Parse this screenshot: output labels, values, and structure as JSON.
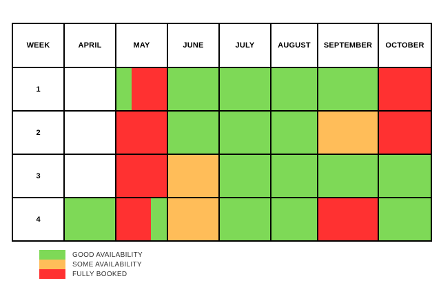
{
  "colors": {
    "good": "#7ED957",
    "some": "#FFBD59",
    "booked": "#FF3131",
    "none": "#FFFFFF"
  },
  "chart_data": {
    "type": "table",
    "columns": [
      "WEEK",
      "APRIL",
      "MAY",
      "JUNE",
      "JULY",
      "AUGUST",
      "SEPTEMBER",
      "OCTOBER"
    ],
    "rows": [
      {
        "week": "1",
        "cells": [
          [
            "none"
          ],
          [
            "good",
            "booked"
          ],
          [
            "good"
          ],
          [
            "good"
          ],
          [
            "good"
          ],
          [
            "good"
          ],
          [
            "booked"
          ]
        ],
        "splits": [
          null,
          [
            0.3,
            0.7
          ],
          null,
          null,
          null,
          null,
          null
        ]
      },
      {
        "week": "2",
        "cells": [
          [
            "none"
          ],
          [
            "booked"
          ],
          [
            "good"
          ],
          [
            "good"
          ],
          [
            "good"
          ],
          [
            "some"
          ],
          [
            "booked"
          ]
        ],
        "splits": [
          null,
          null,
          null,
          null,
          null,
          null,
          null
        ]
      },
      {
        "week": "3",
        "cells": [
          [
            "none"
          ],
          [
            "booked"
          ],
          [
            "some"
          ],
          [
            "good"
          ],
          [
            "good"
          ],
          [
            "good"
          ],
          [
            "good"
          ]
        ],
        "splits": [
          null,
          null,
          null,
          null,
          null,
          null,
          null
        ]
      },
      {
        "week": "4",
        "cells": [
          [
            "good"
          ],
          [
            "booked",
            "good"
          ],
          [
            "some"
          ],
          [
            "good"
          ],
          [
            "good"
          ],
          [
            "booked"
          ],
          [
            "good"
          ]
        ],
        "splits": [
          null,
          [
            0.68,
            0.32
          ],
          null,
          null,
          null,
          null,
          null
        ]
      }
    ],
    "legend": [
      {
        "key": "good",
        "label": "GOOD AVAILABILITY"
      },
      {
        "key": "some",
        "label": "SOME AVAILABILITY"
      },
      {
        "key": "booked",
        "label": "FULLY BOOKED"
      }
    ]
  }
}
